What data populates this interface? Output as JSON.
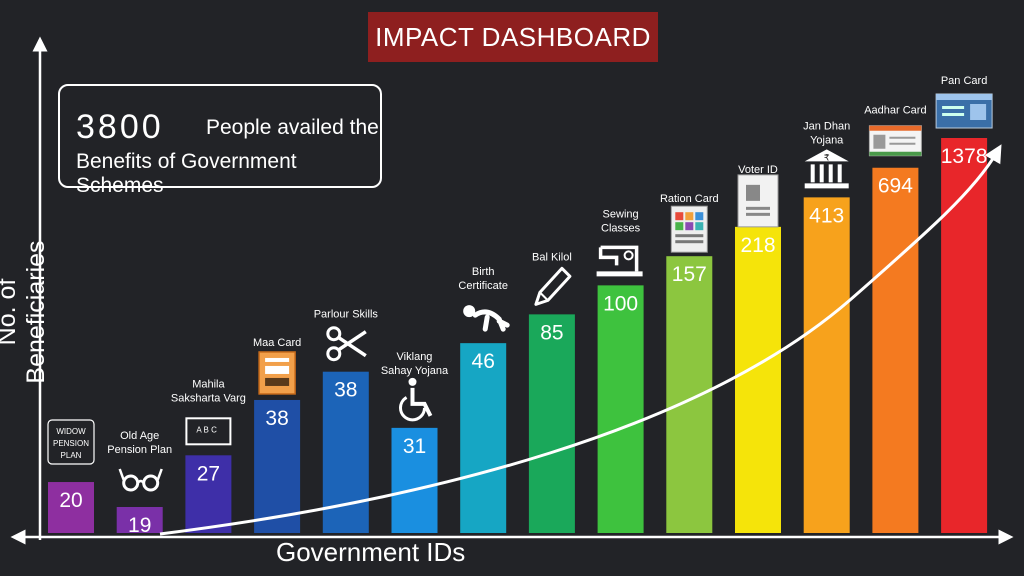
{
  "header": {
    "title": "IMPACT DASHBOARD"
  },
  "info": {
    "number": "3800",
    "line1": "People availed the",
    "line2": "Benefits of Government Schemes"
  },
  "axes": {
    "ylabel": "No. of Beneficiaries",
    "xlabel": "Government IDs"
  },
  "chart_data": {
    "type": "bar",
    "title": "IMPACT DASHBOARD",
    "xlabel": "Government IDs",
    "ylabel": "No. of Beneficiaries",
    "categories": [
      [
        "WIDOW",
        "PENSION",
        "PLAN"
      ],
      [
        "Old Age",
        "Pension Plan"
      ],
      [
        "Mahila",
        "Saksharta Varg"
      ],
      [
        "Maa Card"
      ],
      [
        "Parlour Skills"
      ],
      [
        "Viklang",
        "Sahay Yojana"
      ],
      [
        "Birth",
        "Certificate"
      ],
      [
        "Bal Kilol"
      ],
      [
        "Sewing",
        "Classes"
      ],
      [
        "Ration Card"
      ],
      [
        "Voter ID"
      ],
      [
        "Jan Dhan",
        "Yojana"
      ],
      [
        "Aadhar Card"
      ],
      [
        "Pan Card"
      ]
    ],
    "values": [
      20,
      19,
      27,
      38,
      38,
      31,
      46,
      85,
      100,
      157,
      218,
      413,
      694,
      1378
    ],
    "colors": [
      "#8e2fa0",
      "#7a30a8",
      "#3e2fa8",
      "#1f4fa6",
      "#1c64b8",
      "#1a8fe0",
      "#16a6c4",
      "#1aa85a",
      "#3ec23e",
      "#8cc63f",
      "#f5e40a",
      "#f7a21c",
      "#f47a20",
      "#e8262a"
    ],
    "value_colors": [
      "#ffffff",
      "#ffffff",
      "#ffffff",
      "#ffffff",
      "#ffffff",
      "#ffffff",
      "#ffffff",
      "#ffffff",
      "#ffffff",
      "#222222",
      "#222222",
      "#ffffff",
      "#ffffff",
      "#ffffff"
    ],
    "icons": [
      "",
      "glasses-icon",
      "chalkboard-icon",
      "card-icon",
      "scissors-icon",
      "wheelchair-icon",
      "baby-icon",
      "pencil-icon",
      "sewing-machine-icon",
      "ration-card-icon",
      "voter-id-icon",
      "bank-icon",
      "aadhar-card-icon",
      "pan-card-icon"
    ],
    "total": 3800,
    "trend": "exponential arrow",
    "background": "#222327",
    "title_background": "#8e1f1f"
  }
}
